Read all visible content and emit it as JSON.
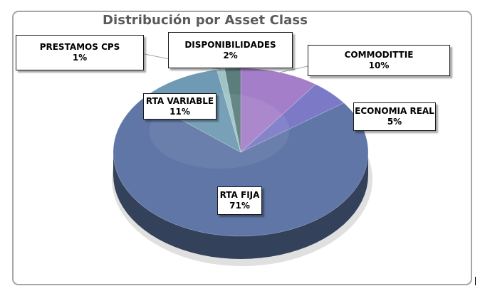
{
  "chart_data": {
    "type": "pie",
    "title": "Distribución por Asset Class",
    "three_d": true,
    "legend": "none",
    "slices": [
      {
        "label": "COMMODITTIE",
        "value": 10,
        "display": "10%",
        "color": "#a57ec9"
      },
      {
        "label": "ECONOMIA REAL",
        "value": 5,
        "display": "5%",
        "color": "#7c7ac6"
      },
      {
        "label": "RTA FIJA",
        "value": 71,
        "display": "71%",
        "color": "#5f76a6"
      },
      {
        "label": "RTA VARIABLE",
        "value": 11,
        "display": "11%",
        "color": "#6e9ab3"
      },
      {
        "label": "PRESTAMOS CPS",
        "value": 1,
        "display": "1%",
        "color": "#9fc4c6"
      },
      {
        "label": "DISPONIBILIDADES",
        "value": 2,
        "display": "2%",
        "color": "#5b7e7c"
      }
    ]
  }
}
